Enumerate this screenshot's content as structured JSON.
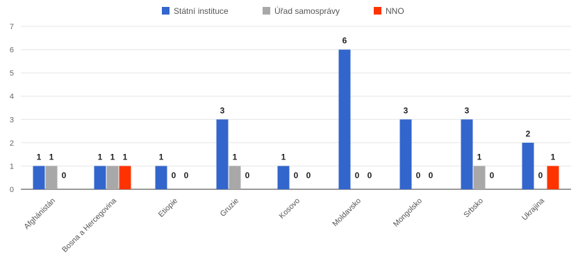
{
  "chart_data": {
    "type": "bar",
    "categories": [
      "Afghánistán",
      "Bosna a Hercegovina",
      "Etiopie",
      "Gruzie",
      "Kosovo",
      "Moldavsko",
      "Mongolsko",
      "Srbsko",
      "Ukrajina"
    ],
    "series": [
      {
        "name": "Státní instituce",
        "color": "#3366cc",
        "values": [
          1,
          1,
          1,
          3,
          1,
          6,
          3,
          3,
          2
        ]
      },
      {
        "name": "Úřad samosprávy",
        "color": "#a8a8a8",
        "values": [
          1,
          1,
          0,
          1,
          0,
          0,
          0,
          1,
          0
        ]
      },
      {
        "name": "NNO",
        "color": "#ff3300",
        "values": [
          0,
          1,
          0,
          0,
          0,
          0,
          0,
          0,
          1
        ]
      }
    ],
    "yticks": [
      0,
      1,
      2,
      3,
      4,
      5,
      6,
      7
    ],
    "ylim": [
      0,
      7
    ],
    "grid": true,
    "legend_position": "top",
    "data_labels": true,
    "title": "",
    "xlabel": "",
    "ylabel": ""
  }
}
